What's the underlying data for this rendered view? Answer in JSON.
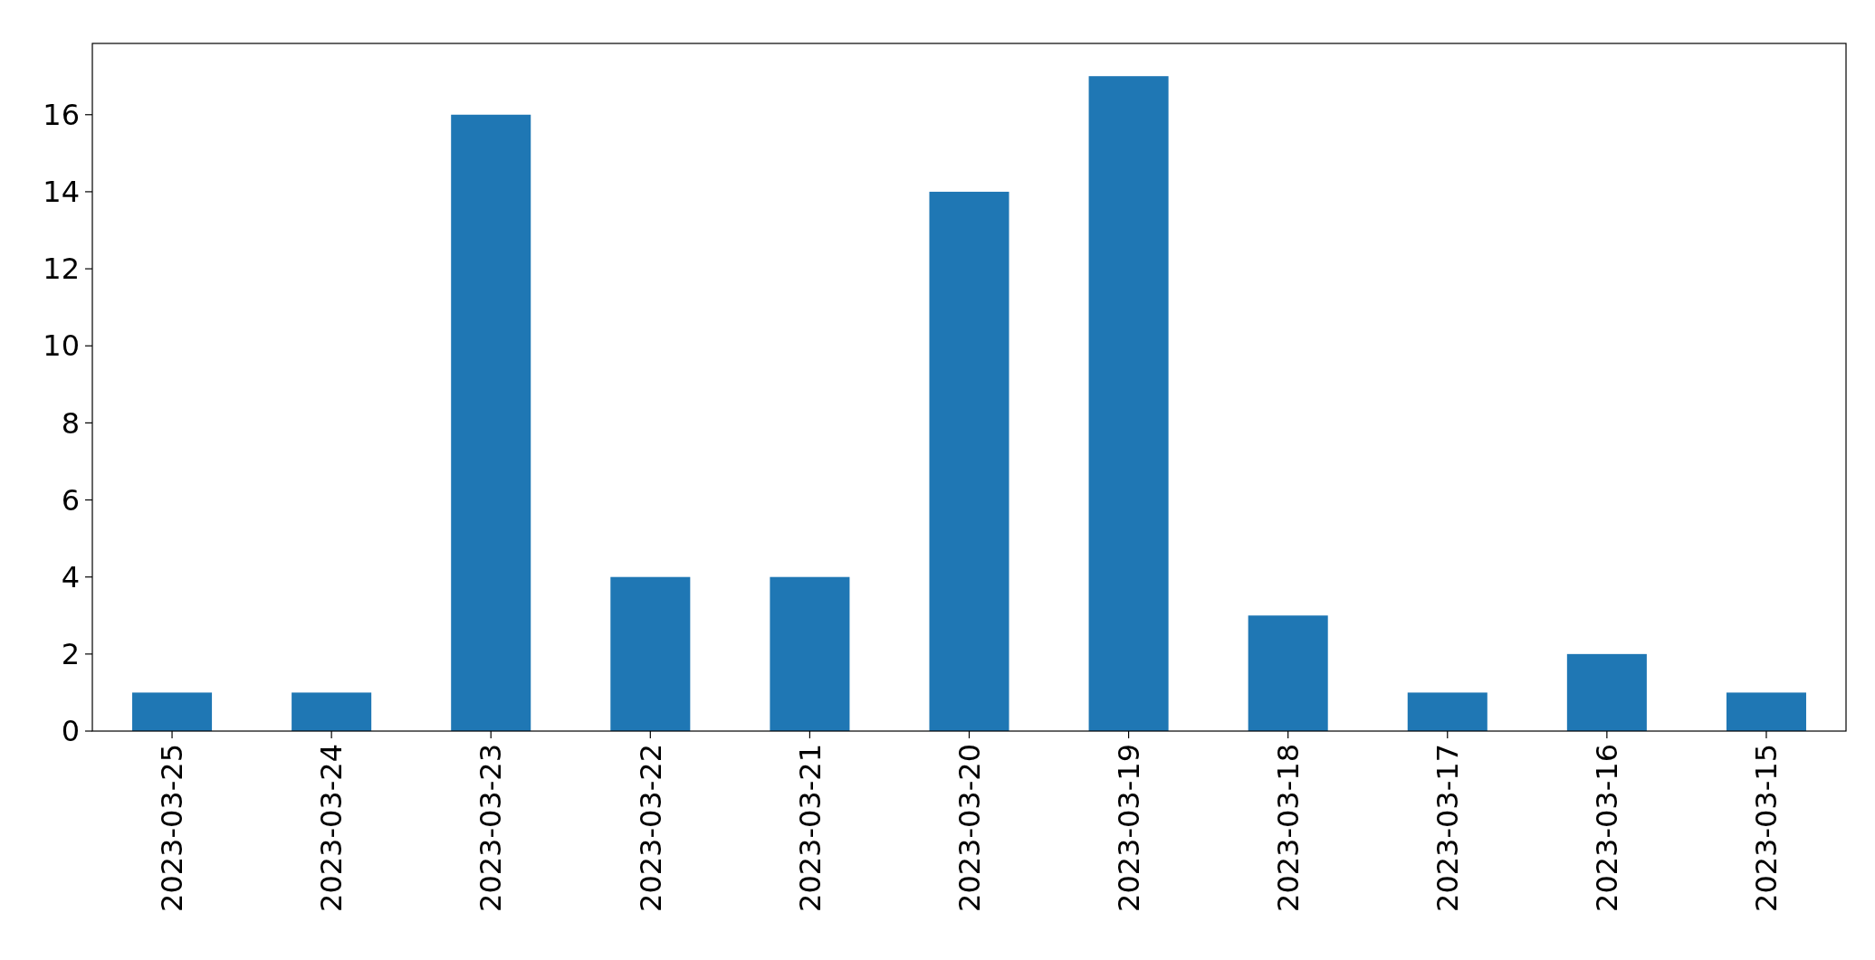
{
  "chart_data": {
    "type": "bar",
    "categories": [
      "2023-03-25",
      "2023-03-24",
      "2023-03-23",
      "2023-03-22",
      "2023-03-21",
      "2023-03-20",
      "2023-03-19",
      "2023-03-18",
      "2023-03-17",
      "2023-03-16",
      "2023-03-15"
    ],
    "values": [
      1,
      1,
      16,
      4,
      4,
      14,
      17,
      3,
      1,
      2,
      1
    ],
    "color": "#1f77b4",
    "ylim": [
      0,
      17.85
    ],
    "yticks": [
      0,
      2,
      4,
      6,
      8,
      10,
      12,
      14,
      16
    ],
    "grid": false
  }
}
